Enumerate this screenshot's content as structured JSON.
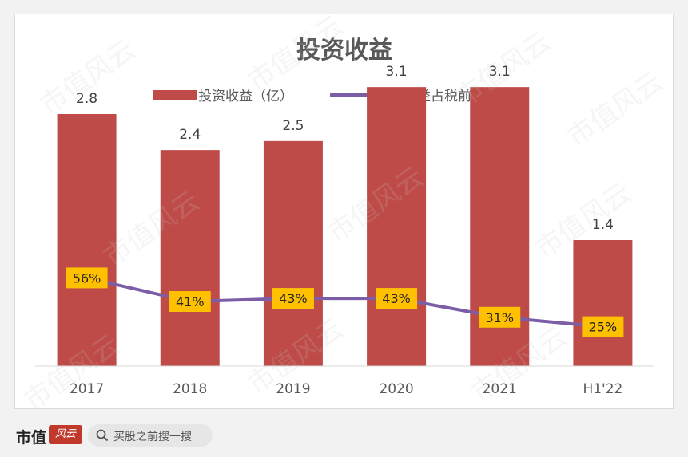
{
  "chart_data": {
    "type": "bar",
    "title": "投资收益",
    "categories": [
      "2017",
      "2018",
      "2019",
      "2020",
      "2021",
      "H1'22"
    ],
    "series": [
      {
        "name": "投资收益（亿）",
        "type": "bar",
        "color": "#be4b48",
        "values": [
          2.8,
          2.4,
          2.5,
          3.1,
          3.1,
          1.4
        ],
        "labels": [
          "2.8",
          "2.4",
          "2.5",
          "3.1",
          "3.1",
          "1.4"
        ]
      },
      {
        "name": "投资收益占税前利润比",
        "type": "line",
        "color": "#7b5ea7",
        "values": [
          56,
          41,
          43,
          43,
          31,
          25
        ],
        "labels": [
          "56%",
          "41%",
          "43%",
          "43%",
          "31%",
          "25%"
        ]
      }
    ],
    "bar_ylim": [
      0,
      3.5
    ],
    "line_ylim": [
      0,
      200
    ],
    "grid": false,
    "legend_position": "top",
    "label_box_color": "#ffc000"
  },
  "watermark": {
    "text": "市值风云"
  },
  "footer": {
    "brand": "市值",
    "logo_text": "风云",
    "search_icon": "search-icon",
    "search_text": "买股之前搜一搜"
  }
}
